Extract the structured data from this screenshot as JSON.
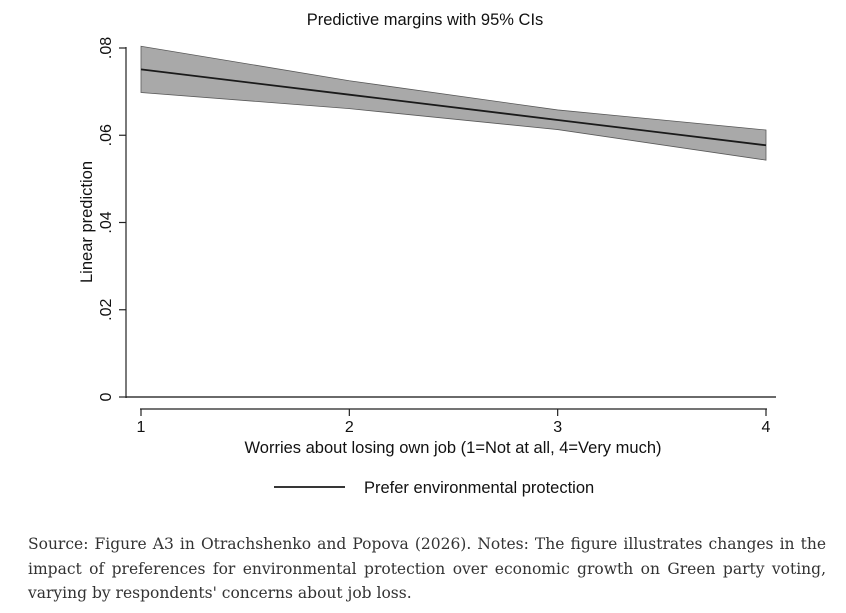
{
  "chart_data": {
    "type": "line",
    "title": "Predictive margins with 95% CIs",
    "xlabel": "Worries about losing own job (1=Not at all, 4=Very much)",
    "ylabel": "Linear prediction",
    "x": [
      1,
      2,
      3,
      4
    ],
    "xlim": [
      1,
      4
    ],
    "ylim": [
      0,
      0.08
    ],
    "x_ticks": [
      1,
      2,
      3,
      4
    ],
    "x_tick_labels": [
      "1",
      "2",
      "3",
      "4"
    ],
    "y_ticks": [
      0,
      0.02,
      0.04,
      0.06,
      0.08
    ],
    "y_tick_labels": [
      "0",
      ".02",
      ".04",
      ".06",
      ".08"
    ],
    "grid": false,
    "legend_position": "bottom",
    "series": [
      {
        "name": "Prefer environmental protection",
        "values": [
          0.0751,
          0.0693,
          0.0635,
          0.0577
        ],
        "ci_lower": [
          0.0698,
          0.0661,
          0.0613,
          0.0543
        ],
        "ci_upper": [
          0.0804,
          0.0725,
          0.0658,
          0.0612
        ],
        "color": "#1a1a1a",
        "band_color": "#a9a9a9"
      }
    ]
  },
  "caption": "Source: Figure A3 in Otrachshenko and Popova (2026). Notes: The figure illustrates changes in the impact of preferences for environmental protection over economic growth on Green party voting, varying by respondents' concerns about job loss."
}
